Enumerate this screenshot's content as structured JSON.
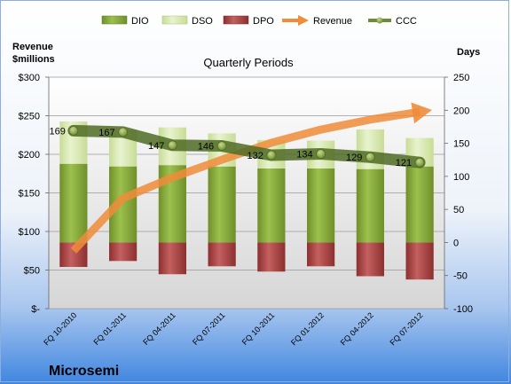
{
  "chart_data": {
    "type": "bar",
    "title": "Quarterly Periods",
    "company": "Microsemi",
    "left_axis_title_line1": "Revenue",
    "left_axis_title_line2": "$millions",
    "right_axis_title": "Days",
    "left_axis": {
      "min": 0,
      "max": 300,
      "step": 50,
      "tick_labels": [
        "$-",
        "$50",
        "$100",
        "$150",
        "$200",
        "$250",
        "$300"
      ]
    },
    "right_axis": {
      "min": -100,
      "max": 250,
      "step": 50,
      "tick_labels": [
        "-100",
        "-50",
        "0",
        "50",
        "100",
        "150",
        "200",
        "250"
      ]
    },
    "categories": [
      "FQ 10-2010",
      "FQ 01-2011",
      "FQ 04-2011",
      "FQ 07-2011",
      "FQ 10-2011",
      "FQ 01-2012",
      "FQ 04-2012",
      "FQ 07-2012"
    ],
    "legend": [
      "DIO",
      "DSO",
      "DPO",
      "Revenue",
      "CCC"
    ],
    "series": [
      {
        "name": "DIO",
        "axis": "right",
        "values": [
          119,
          115,
          117,
          115,
          112,
          112,
          111,
          115
        ],
        "color": "#8aab3f"
      },
      {
        "name": "DSO",
        "axis": "right",
        "values": [
          64,
          55,
          57,
          50,
          43,
          42,
          60,
          43
        ],
        "color": "#d6e8b1"
      },
      {
        "name": "DPO",
        "axis": "right",
        "values": [
          -37,
          -28,
          -48,
          -36,
          -44,
          -36,
          -51,
          -56
        ],
        "color": "#b34c4c"
      },
      {
        "name": "Revenue",
        "axis": "left",
        "values": [
          75,
          143,
          170,
          193,
          215,
          232,
          245,
          255
        ],
        "color": "#f08c3a",
        "display": "arrow"
      },
      {
        "name": "CCC",
        "axis": "right",
        "values": [
          169,
          167,
          147,
          146,
          132,
          134,
          129,
          121
        ],
        "color": "#6e8a3a"
      }
    ],
    "data_labels": [
      "169",
      "167",
      "147",
      "146",
      "132",
      "134",
      "129",
      "121"
    ],
    "grid": true,
    "legend_position": "top"
  }
}
